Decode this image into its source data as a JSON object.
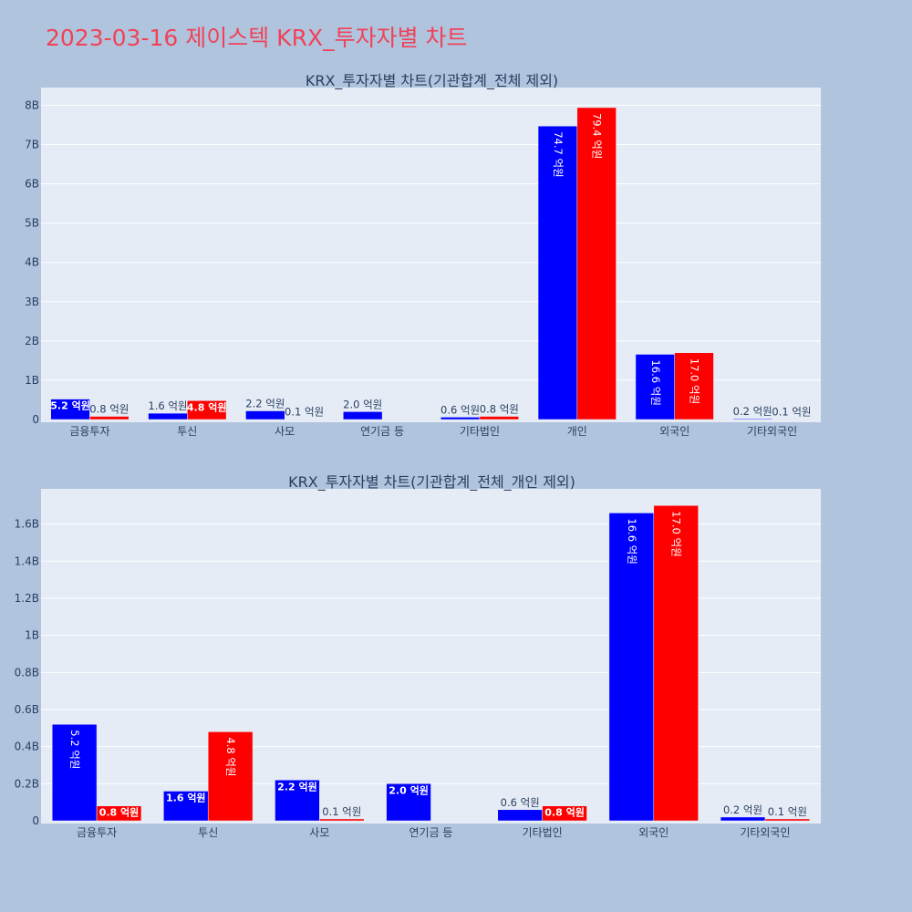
{
  "page": {
    "title": "2023-03-16 제이스텍 KRX_투자자별 차트"
  },
  "colors": {
    "series_a": "#0000ff",
    "series_b": "#ff0000",
    "title": "#ef4358"
  },
  "chart_data": [
    {
      "type": "bar",
      "title": "KRX_투자자별 차트(기관합계_전체 제외)",
      "categories": [
        "금융투자",
        "투신",
        "사모",
        "연기금 등",
        "기타법인",
        "개인",
        "외국인",
        "기타외국인"
      ],
      "series": [
        {
          "values": [
            520000000,
            160000000,
            220000000,
            200000000,
            60000000,
            7470000000,
            1660000000,
            20000000
          ],
          "labels": [
            "5.2 억원",
            "1.6 억원",
            "2.2 억원",
            "2.0 억원",
            "0.6 억원",
            "74.7 억원",
            "16.6 억원",
            "0.2 억원"
          ]
        },
        {
          "values": [
            80000000,
            480000000,
            10000000,
            0,
            80000000,
            7940000000,
            1700000000,
            10000000
          ],
          "labels": [
            "0.8 억원",
            "4.8 억원",
            "0.1 억원",
            "",
            "0.8 억원",
            "79.4 억원",
            "17.0 억원",
            "0.1 억원"
          ]
        }
      ],
      "ylim": [
        0,
        8450000000
      ],
      "yticks": [
        {
          "v": 0,
          "t": "0"
        },
        {
          "v": 1000000000,
          "t": "1B"
        },
        {
          "v": 2000000000,
          "t": "2B"
        },
        {
          "v": 3000000000,
          "t": "3B"
        },
        {
          "v": 4000000000,
          "t": "4B"
        },
        {
          "v": 5000000000,
          "t": "5B"
        },
        {
          "v": 6000000000,
          "t": "6B"
        },
        {
          "v": 7000000000,
          "t": "7B"
        },
        {
          "v": 8000000000,
          "t": "8B"
        }
      ],
      "grid": true
    },
    {
      "type": "bar",
      "title": "KRX_투자자별 차트(기관합계_전체_개인 제외)",
      "categories": [
        "금융투자",
        "투신",
        "사모",
        "연기금 등",
        "기타법인",
        "외국인",
        "기타외국인"
      ],
      "series": [
        {
          "values": [
            520000000,
            160000000,
            220000000,
            200000000,
            60000000,
            1660000000,
            20000000
          ],
          "labels": [
            "5.2 억원",
            "1.6 억원",
            "2.2 억원",
            "2.0 억원",
            "0.6 억원",
            "16.6 억원",
            "0.2 억원"
          ]
        },
        {
          "values": [
            80000000,
            480000000,
            10000000,
            0,
            80000000,
            1700000000,
            10000000
          ],
          "labels": [
            "0.8 억원",
            "4.8 억원",
            "0.1 억원",
            "",
            "0.8 억원",
            "17.0 억원",
            "0.1 억원"
          ]
        }
      ],
      "ylim": [
        0,
        1790000000
      ],
      "yticks": [
        {
          "v": 0,
          "t": "0"
        },
        {
          "v": 200000000,
          "t": "0.2B"
        },
        {
          "v": 400000000,
          "t": "0.4B"
        },
        {
          "v": 600000000,
          "t": "0.6B"
        },
        {
          "v": 800000000,
          "t": "0.8B"
        },
        {
          "v": 1000000000,
          "t": "1B"
        },
        {
          "v": 1200000000,
          "t": "1.2B"
        },
        {
          "v": 1400000000,
          "t": "1.4B"
        },
        {
          "v": 1600000000,
          "t": "1.6B"
        }
      ],
      "grid": true
    }
  ]
}
